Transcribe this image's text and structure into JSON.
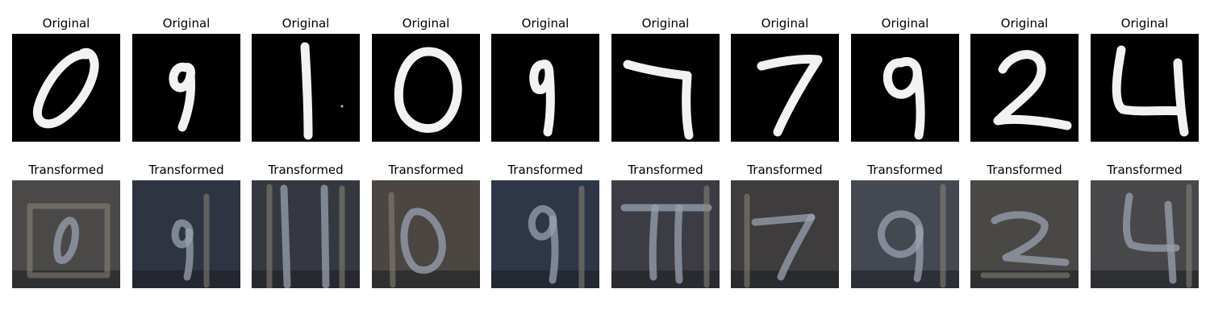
{
  "rows": [
    {
      "title": "Original",
      "panel_kind": "mnist",
      "panels": [
        {
          "digit": "0",
          "color": "#000000"
        },
        {
          "digit": "9",
          "color": "#000000"
        },
        {
          "digit": "1",
          "color": "#000000"
        },
        {
          "digit": "0",
          "color": "#000000"
        },
        {
          "digit": "9",
          "color": "#000000"
        },
        {
          "digit": "7",
          "color": "#000000"
        },
        {
          "digit": "7",
          "color": "#000000"
        },
        {
          "digit": "9",
          "color": "#000000"
        },
        {
          "digit": "2",
          "color": "#000000"
        },
        {
          "digit": "4",
          "color": "#000000"
        }
      ]
    },
    {
      "title": "Transformed",
      "panel_kind": "svhn-like",
      "panels": [
        {
          "digit": "0",
          "color": "#4a4948"
        },
        {
          "digit": "9",
          "color": "#2e3442"
        },
        {
          "digit": "1",
          "color": "#353840"
        },
        {
          "digit": "0",
          "color": "#4b4641"
        },
        {
          "digit": "9",
          "color": "#2f3647"
        },
        {
          "digit": "7",
          "color": "#3b3c44"
        },
        {
          "digit": "7",
          "color": "#3e3c3c"
        },
        {
          "digit": "9",
          "color": "#444850"
        },
        {
          "digit": "2",
          "color": "#4a4845"
        },
        {
          "digit": "4",
          "color": "#48484a"
        }
      ]
    }
  ]
}
